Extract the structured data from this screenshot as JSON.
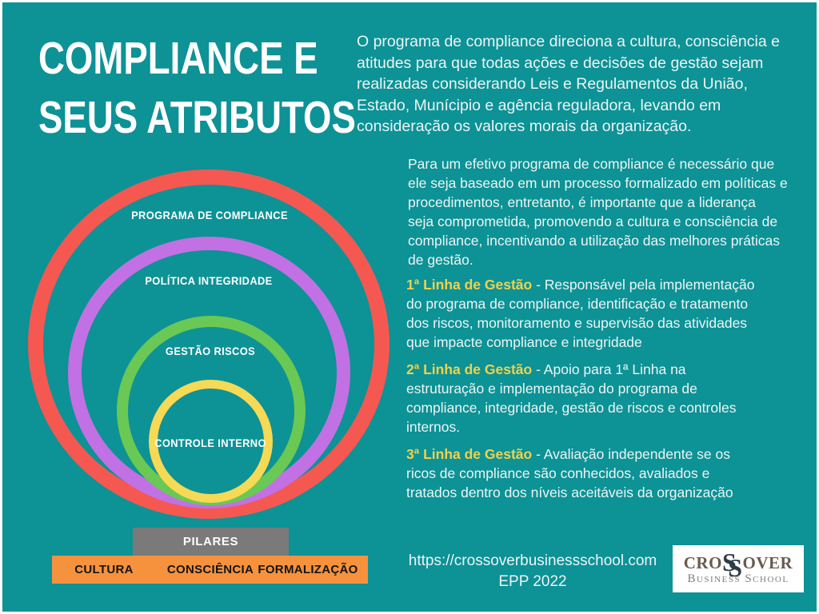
{
  "page": {
    "background_color": "#0D9296",
    "border_color": "#FFFFFF"
  },
  "title": {
    "line1": "COMPLIANCE E",
    "line2": "SEUS ATRIBUTOS",
    "color": "#FFFFFF"
  },
  "intro_paragraph": "O programa de compliance direciona a cultura, consciência e\natitudes para que todas ações e decisões de gestão sejam\nrealizadas considerando Leis e Regulamentos da União,\nEstado, Munícipio e agência reguladora, levando em\nconsideração os valores morais da organização.",
  "second_paragraph": "Para um efetivo programa de compliance é necessário que\nele seja baseado em um processo formalizado em políticas e\nprocedimentos, entretanto, é importante que a liderança\nseja comprometida,  promovendo a cultura e consciência de\ncompliance, incentivando a utilização das melhores práticas\nde gestão.",
  "management_lines": {
    "heading_color": "#F0D24B",
    "items": [
      {
        "heading": "1ª Linha de Gestão",
        "text": " - Responsável pela implementação\ndo programa de compliance, identificação e tratamento\ndos riscos, monitoramento e supervisão das atividades\nque impacte compliance e integridade"
      },
      {
        "heading": "2ª Linha de Gestão",
        "text": " - Apoio para 1ª Linha na\nestruturação e implementação do programa de\ncompliance, integridade, gestão de riscos e controles\ninternos."
      },
      {
        "heading": "3ª Linha de Gestão",
        "text": " - Avaliação independente se os\nricos de compliance são conhecidos, avaliados e\ntratados dentro dos níveis aceitáveis da organização"
      }
    ]
  },
  "diagram": {
    "rings": [
      {
        "label": "PROGRAMA DE COMPLIANCE",
        "color": "#F45851"
      },
      {
        "label": "POLÍTICA INTEGRIDADE",
        "color": "#C171E3"
      },
      {
        "label": "GESTÃO RISCOS",
        "color": "#6AC854"
      },
      {
        "label": "CONTROLE INTERNO",
        "color": "#F6D955"
      }
    ],
    "pillars": {
      "label": "PILARES",
      "background_color": "#7A7A7A"
    },
    "base": {
      "items": [
        "CULTURA",
        "CONSCIÊNCIA",
        "FORMALIZAÇÃO"
      ],
      "background_color": "#F6923E"
    }
  },
  "footer": {
    "url": "https://crossoverbusinessschool.com",
    "credit": "EPP 2022"
  },
  "logo": {
    "part1": "CRO",
    "s1": "S",
    "s2": "S",
    "part2": "OVER",
    "subtitle": "Business School"
  }
}
